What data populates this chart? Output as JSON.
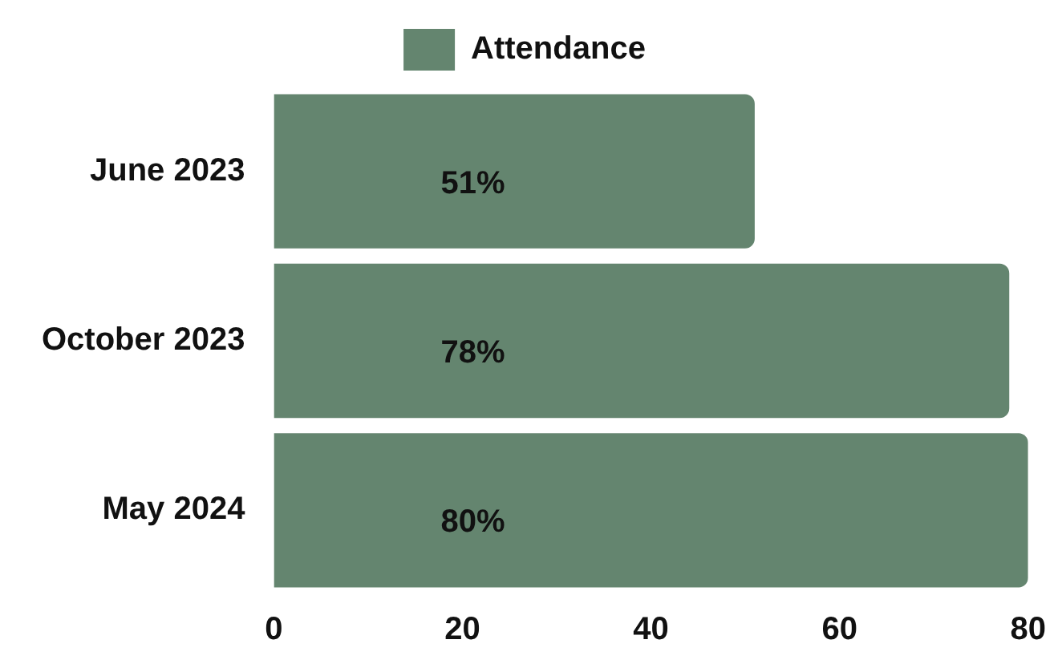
{
  "chart_data": {
    "type": "bar",
    "orientation": "horizontal",
    "categories": [
      "June 2023",
      "October 2023",
      "May 2024"
    ],
    "series": [
      {
        "name": "Attendance",
        "color": "#64856f",
        "values": [
          51,
          78,
          80
        ],
        "value_labels": [
          "51%",
          "78%",
          "80%"
        ]
      }
    ],
    "xlim": [
      0,
      80
    ],
    "xticks": [
      0,
      20,
      40,
      60,
      80
    ],
    "grid": false,
    "legend": "top"
  }
}
